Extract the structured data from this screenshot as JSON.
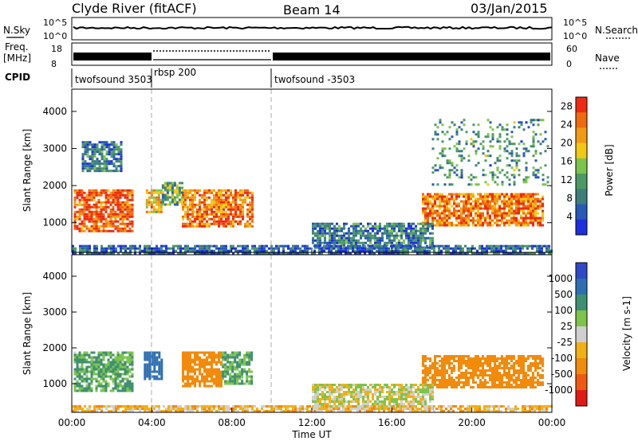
{
  "header": {
    "station": "Clyde River (fitACF)",
    "beam": "Beam 14",
    "date": "03/Jan/2015"
  },
  "noise_panel": {
    "left_label": "N.Sky",
    "right_label": "N.Search",
    "tick_top": "10^5",
    "tick_bottom": "10^0"
  },
  "freq_panel": {
    "left_label_line1": "Freq.",
    "left_label_line2": "[MHz]",
    "left_tick_top": "18",
    "left_tick_bottom": "8",
    "right_label": "Nave",
    "right_tick_top": "60",
    "right_tick_bottom": "0"
  },
  "cpid_panel": {
    "label": "CPID",
    "programs": [
      {
        "name": "twofsound 3503",
        "start_hour": 0
      },
      {
        "name": "rbsp 200",
        "start_hour": 4
      },
      {
        "name": "twofsound -3503",
        "start_hour": 10
      }
    ]
  },
  "time_axis": {
    "label": "Time UT",
    "ticks": [
      "00:00",
      "04:00",
      "08:00",
      "12:00",
      "16:00",
      "20:00",
      "00:00"
    ]
  },
  "colors": {
    "power_scale": [
      "#1f2ee0",
      "#2659b8",
      "#3b7f7a",
      "#4c9a62",
      "#7cc54a",
      "#f2c814",
      "#f29a14",
      "#ef6a0c",
      "#ef2a10"
    ],
    "velocity_scale": [
      "#2f49c8",
      "#2e6fb4",
      "#3f8f72",
      "#7cc54a",
      "#cfcfcf",
      "#f2b014",
      "#f28a0c",
      "#ef5a10",
      "#e21a14"
    ]
  },
  "chart_data": [
    {
      "type": "heatmap",
      "title": "Power",
      "ylabel": "Slant Range [km]",
      "xlabel": "Time UT",
      "xlim_hours": [
        0,
        24
      ],
      "ylim": [
        200,
        4600
      ],
      "y_ticks": [
        1000,
        2000,
        3000,
        4000
      ],
      "colorbar": {
        "label": "Power [dB]",
        "ticks": [
          4,
          8,
          12,
          16,
          20,
          24,
          28
        ],
        "range": [
          0,
          30
        ]
      },
      "echo_regions": [
        {
          "t_start": 0.1,
          "t_end": 3.0,
          "r_min": 800,
          "r_max": 1900,
          "level": 26
        },
        {
          "t_start": 3.7,
          "t_end": 4.5,
          "r_min": 1300,
          "r_max": 1900,
          "level": 20
        },
        {
          "t_start": 5.5,
          "t_end": 9.0,
          "r_min": 900,
          "r_max": 1900,
          "level": 24
        },
        {
          "t_start": 4.5,
          "t_end": 5.5,
          "r_min": 1500,
          "r_max": 2100,
          "level": 12
        },
        {
          "t_start": 17.5,
          "t_end": 23.5,
          "r_min": 900,
          "r_max": 1800,
          "level": 24
        },
        {
          "t_start": 12.0,
          "t_end": 18.0,
          "r_min": 300,
          "r_max": 1000,
          "level": 8
        },
        {
          "t_start": 0.0,
          "t_end": 24.0,
          "r_min": 200,
          "r_max": 400,
          "level": 6
        },
        {
          "t_start": 0.5,
          "t_end": 2.5,
          "r_min": 2400,
          "r_max": 3200,
          "level": 8
        },
        {
          "t_start": 18.0,
          "t_end": 23.8,
          "r_min": 2000,
          "r_max": 3800,
          "level": 10
        }
      ]
    },
    {
      "type": "heatmap",
      "title": "Velocity",
      "ylabel": "Slant Range [km]",
      "xlabel": "Time UT",
      "xlim_hours": [
        0,
        24
      ],
      "ylim": [
        200,
        4600
      ],
      "y_ticks": [
        1000,
        2000,
        3000,
        4000
      ],
      "colorbar": {
        "label": "Velocity [m s-1]",
        "ticks": [
          "1000",
          "500",
          "100",
          "25",
          "-25",
          "-100",
          "-500",
          "-1000"
        ]
      },
      "echo_regions": [
        {
          "t_start": 0.1,
          "t_end": 3.0,
          "r_min": 800,
          "r_max": 1900,
          "level": 100
        },
        {
          "t_start": 3.6,
          "t_end": 4.5,
          "r_min": 1100,
          "r_max": 1900,
          "level": 800
        },
        {
          "t_start": 5.5,
          "t_end": 7.5,
          "r_min": 900,
          "r_max": 1900,
          "level": -300
        },
        {
          "t_start": 7.5,
          "t_end": 9.0,
          "r_min": 1000,
          "r_max": 1900,
          "level": 100
        },
        {
          "t_start": 17.5,
          "t_end": 23.5,
          "r_min": 900,
          "r_max": 1800,
          "level": -200
        },
        {
          "t_start": 12.0,
          "t_end": 18.0,
          "r_min": 300,
          "r_max": 1000,
          "level": 0
        },
        {
          "t_start": 0.0,
          "t_end": 24.0,
          "r_min": 200,
          "r_max": 400,
          "level": -60
        }
      ]
    }
  ]
}
